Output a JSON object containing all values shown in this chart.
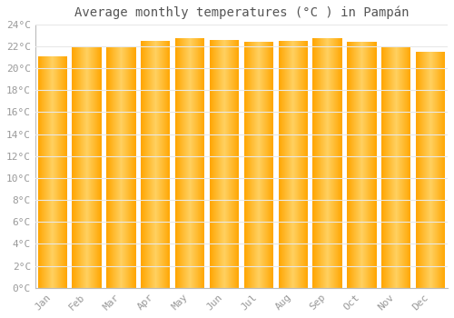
{
  "title": "Average monthly temperatures (°C ) in Pampán",
  "months": [
    "Jan",
    "Feb",
    "Mar",
    "Apr",
    "May",
    "Jun",
    "Jul",
    "Aug",
    "Sep",
    "Oct",
    "Nov",
    "Dec"
  ],
  "values": [
    21.1,
    22.0,
    22.0,
    22.5,
    22.7,
    22.6,
    22.4,
    22.5,
    22.7,
    22.4,
    21.9,
    21.5
  ],
  "ylim": [
    0,
    24
  ],
  "yticks": [
    0,
    2,
    4,
    6,
    8,
    10,
    12,
    14,
    16,
    18,
    20,
    22,
    24
  ],
  "bar_color_center": "#FFD060",
  "bar_color_edge": "#FFA500",
  "background_color": "#FFFFFF",
  "grid_color": "#E8E8E8",
  "text_color": "#999999",
  "title_color": "#555555",
  "title_fontsize": 10,
  "tick_fontsize": 8,
  "bar_width": 0.85
}
